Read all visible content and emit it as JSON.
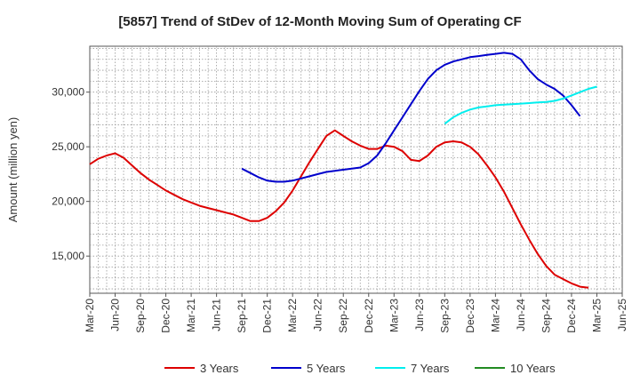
{
  "chart_data": {
    "type": "line",
    "title": "[5857]  Trend of StDev of 12-Month Moving Sum of Operating CF",
    "xlabel": "",
    "ylabel": "Amount (million yen)",
    "ylim": [
      11600,
      34200
    ],
    "y_ticks": [
      15000,
      20000,
      25000,
      30000
    ],
    "y_tick_labels": [
      "15,000",
      "20,000",
      "25,000",
      "30,000"
    ],
    "x_tick_labels": [
      "Mar-20",
      "Jun-20",
      "Sep-20",
      "Dec-20",
      "Mar-21",
      "Jun-21",
      "Sep-21",
      "Dec-21",
      "Mar-22",
      "Jun-22",
      "Sep-22",
      "Dec-22",
      "Mar-23",
      "Jun-23",
      "Sep-23",
      "Dec-23",
      "Mar-24",
      "Jun-24",
      "Sep-24",
      "Dec-24",
      "Mar-25",
      "Jun-25"
    ],
    "x_start": "Mar-20",
    "x_end": "Jun-25",
    "grid": true,
    "legend_position": "bottom",
    "series": [
      {
        "name": "3 Years",
        "color": "#dd0000",
        "start": "Mar-20",
        "values": [
          23400,
          23900,
          24200,
          24400,
          24000,
          23300,
          22600,
          22000,
          21500,
          21000,
          20600,
          20200,
          19900,
          19600,
          19400,
          19200,
          19000,
          18800,
          18500,
          18200,
          18200,
          18500,
          19100,
          19900,
          21000,
          22300,
          23600,
          24800,
          26000,
          26500,
          26000,
          25500,
          25100,
          24800,
          24800,
          25100,
          25000,
          24600,
          23800,
          23700,
          24200,
          25000,
          25400,
          25500,
          25400,
          25000,
          24300,
          23300,
          22200,
          20900,
          19400,
          17900,
          16500,
          15200,
          14100,
          13300,
          12900,
          12500,
          12200,
          12100
        ]
      },
      {
        "name": "5 Years",
        "color": "#0000cc",
        "start": "Sep-21",
        "values": [
          23000,
          22600,
          22200,
          21900,
          21800,
          21800,
          21900,
          22100,
          22300,
          22500,
          22700,
          22800,
          22900,
          23000,
          23100,
          23500,
          24200,
          25300,
          26500,
          27700,
          28900,
          30100,
          31200,
          32000,
          32500,
          32800,
          33000,
          33200,
          33300,
          33400,
          33500,
          33600,
          33500,
          33000,
          32000,
          31200,
          30700,
          30300,
          29700,
          28800,
          27800
        ]
      },
      {
        "name": "7 Years",
        "color": "#00eeee",
        "start": "Sep-23",
        "values": [
          27100,
          27700,
          28100,
          28400,
          28600,
          28700,
          28800,
          28850,
          28900,
          28950,
          29000,
          29050,
          29100,
          29200,
          29400,
          29700,
          30000,
          30300,
          30500
        ]
      },
      {
        "name": "10 Years",
        "color": "#228b22",
        "start": "Mar-25",
        "values": []
      }
    ]
  }
}
